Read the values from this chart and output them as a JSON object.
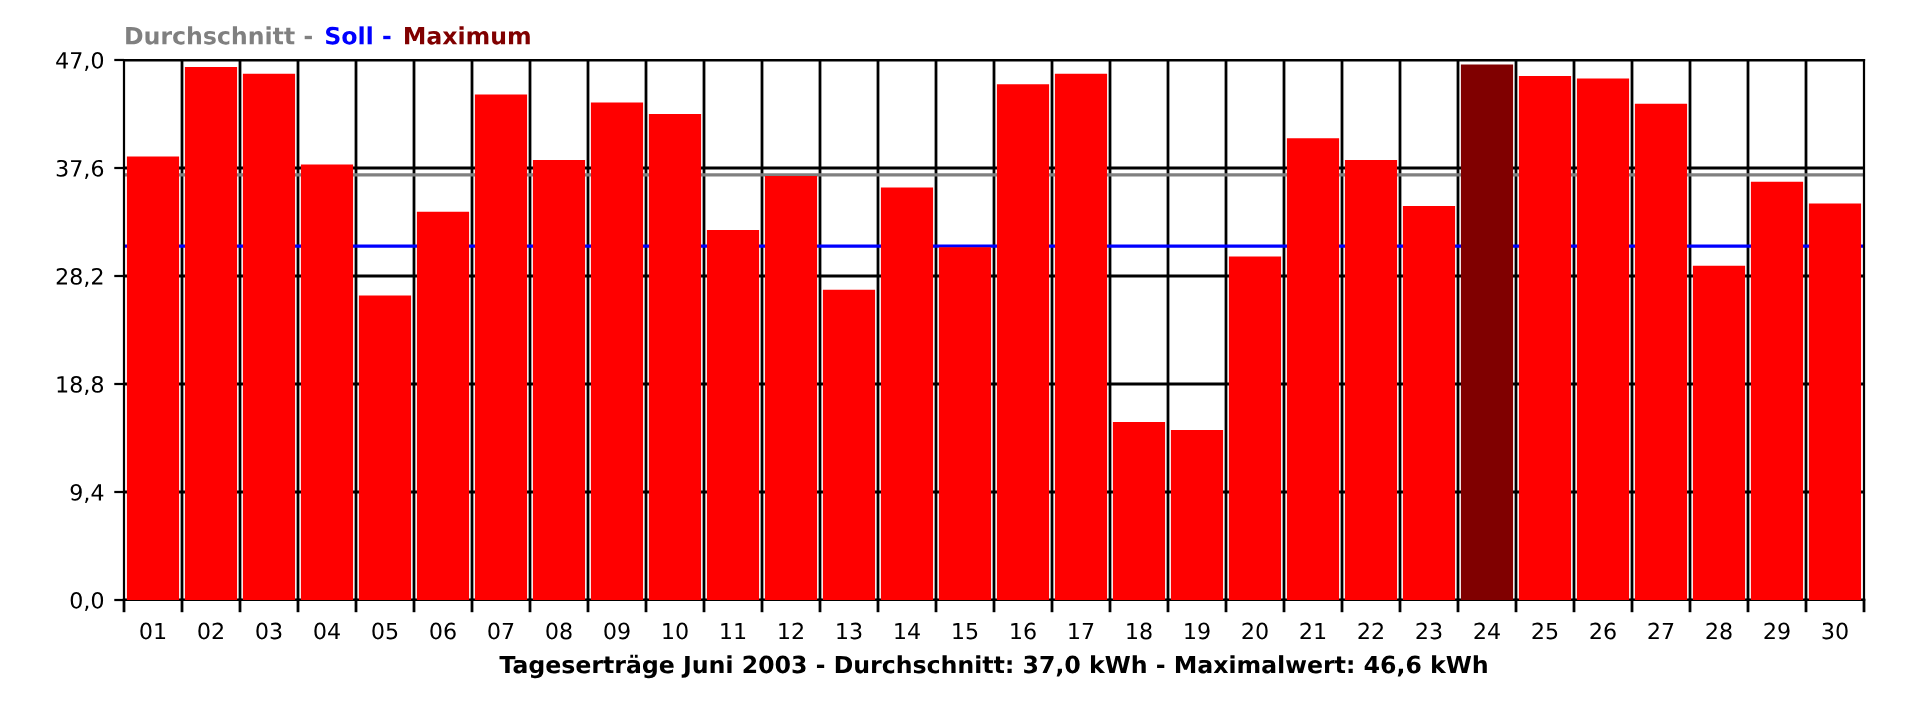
{
  "chart_data": {
    "type": "bar",
    "xlabel": "Tageserträge Juni 2003 - Durchschnitt: 37,0 kWh - Maximalwert: 46,6 kWh",
    "categories": [
      "01",
      "02",
      "03",
      "04",
      "05",
      "06",
      "07",
      "08",
      "09",
      "10",
      "11",
      "12",
      "13",
      "14",
      "15",
      "16",
      "17",
      "18",
      "19",
      "20",
      "21",
      "22",
      "23",
      "24",
      "25",
      "26",
      "27",
      "28",
      "29",
      "30"
    ],
    "values": [
      38.6,
      46.4,
      45.8,
      37.9,
      26.5,
      33.8,
      44.0,
      38.3,
      43.3,
      42.3,
      32.2,
      36.9,
      27.0,
      35.9,
      30.7,
      44.9,
      45.8,
      15.5,
      14.8,
      29.9,
      40.2,
      38.3,
      34.3,
      46.6,
      45.6,
      45.4,
      43.2,
      29.1,
      36.4,
      34.5
    ],
    "colors": [
      "#ff0000",
      "#ff0000",
      "#ff0000",
      "#ff0000",
      "#ff0000",
      "#ff0000",
      "#ff0000",
      "#ff0000",
      "#ff0000",
      "#ff0000",
      "#ff0000",
      "#ff0000",
      "#ff0000",
      "#ff0000",
      "#ff0000",
      "#ff0000",
      "#ff0000",
      "#ff0000",
      "#ff0000",
      "#ff0000",
      "#ff0000",
      "#ff0000",
      "#ff0000",
      "#800000",
      "#ff0000",
      "#ff0000",
      "#ff0000",
      "#ff0000",
      "#ff0000",
      "#ff0000"
    ],
    "ylim": [
      0,
      47
    ],
    "yticks": [
      {
        "value": 0,
        "label": "0,0"
      },
      {
        "value": 9.4,
        "label": "9,4"
      },
      {
        "value": 18.8,
        "label": "18,8"
      },
      {
        "value": 28.2,
        "label": "28,2"
      },
      {
        "value": 37.6,
        "label": "37,6"
      },
      {
        "value": 47,
        "label": "47,0"
      }
    ],
    "grid": true,
    "ref_lines": [
      {
        "axis": "y",
        "value": 37.0,
        "label": "Durchschnitt -",
        "color": "#808080"
      },
      {
        "axis": "y",
        "value": 30.8,
        "label": "Soll -",
        "color": "#0000ff"
      }
    ],
    "annotations": [
      "Maximum"
    ]
  }
}
